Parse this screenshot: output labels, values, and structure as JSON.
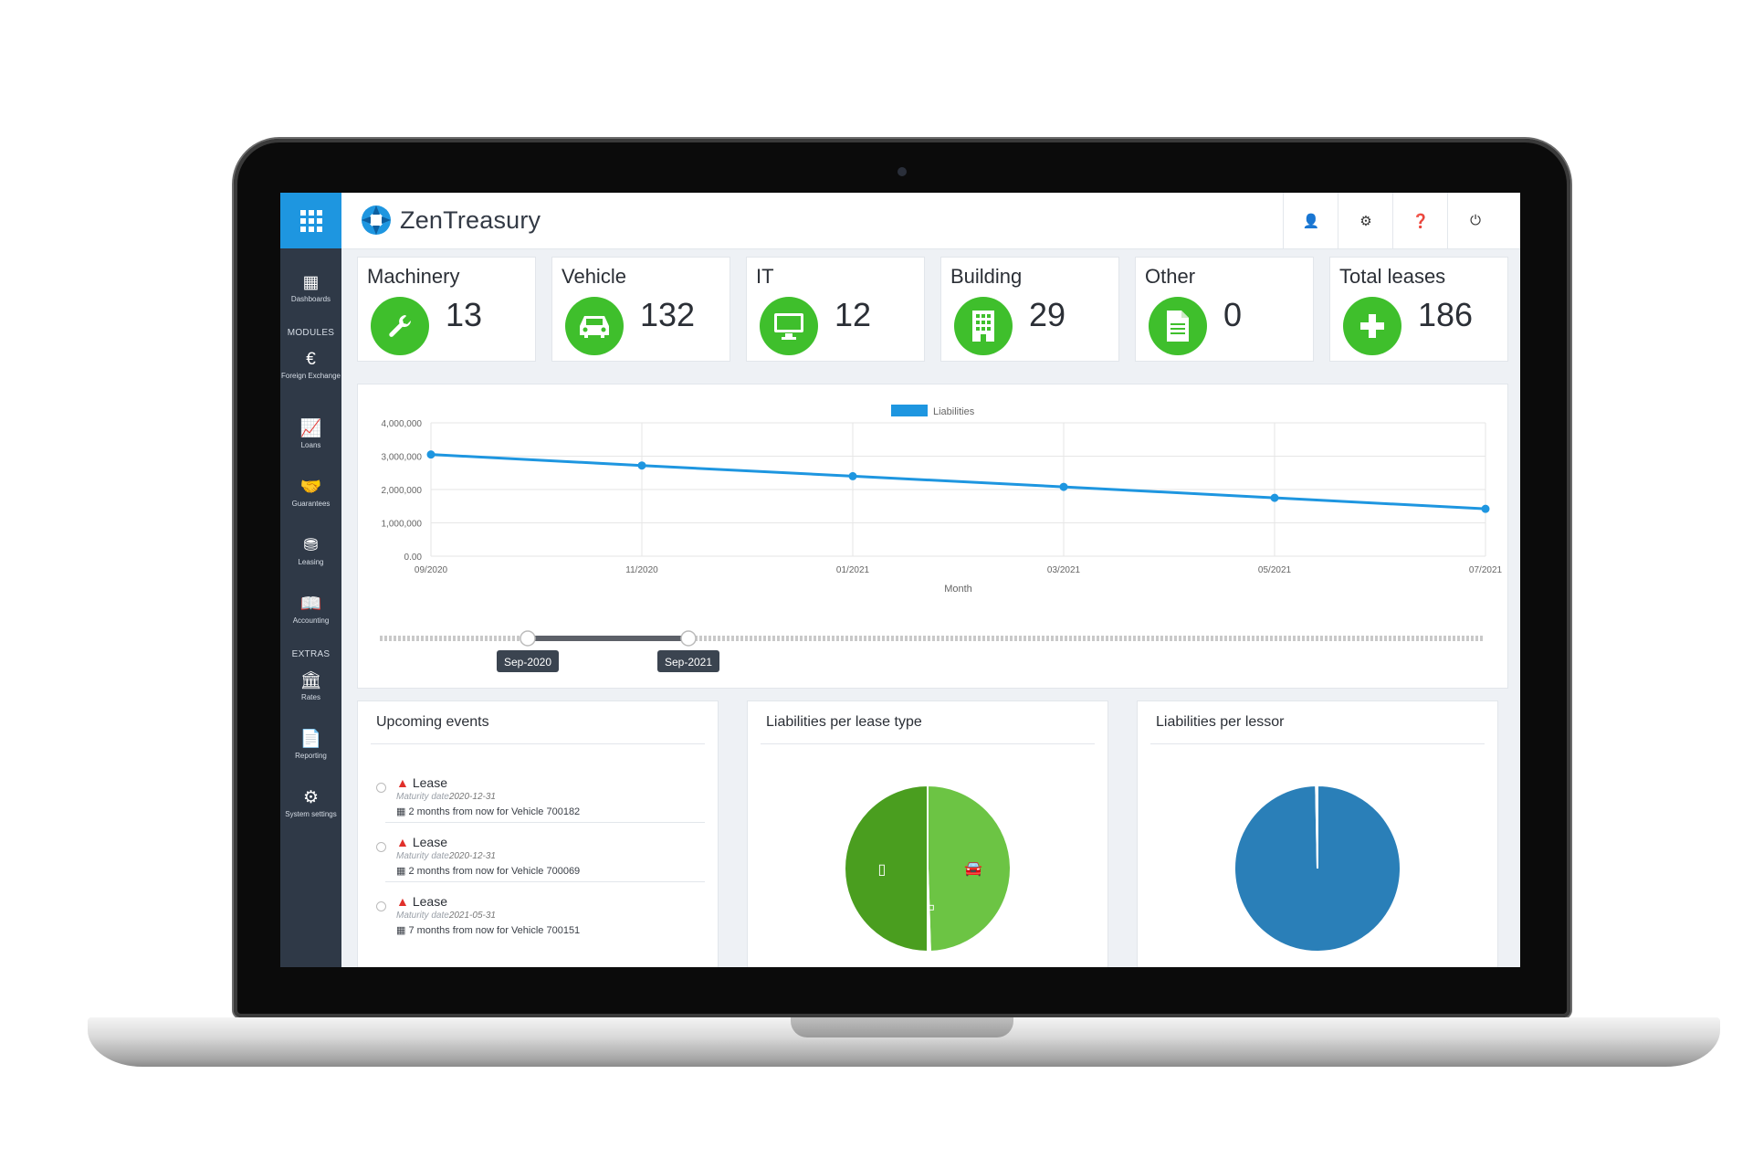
{
  "app": {
    "name": "ZenTreasury"
  },
  "sidebar": {
    "items": [
      {
        "label": "Dashboards",
        "icon": "dashboard-icon"
      },
      {
        "label": "Foreign Exchange",
        "icon": "currency-exchange-icon"
      },
      {
        "label": "Loans",
        "icon": "loans-chart-icon"
      },
      {
        "label": "Guarantees",
        "icon": "handshake-icon"
      },
      {
        "label": "Leasing",
        "icon": "leasing-icon"
      },
      {
        "label": "Accounting",
        "icon": "accounting-book-icon"
      },
      {
        "label": "Rates",
        "icon": "bank-icon"
      },
      {
        "label": "Reporting",
        "icon": "report-icon"
      },
      {
        "label": "System settings",
        "icon": "gears-icon"
      }
    ],
    "section_modules": "MODULES",
    "section_extras": "EXTRAS"
  },
  "header_icons": [
    "user-icon",
    "gear-icon",
    "help-icon",
    "power-icon"
  ],
  "stats": [
    {
      "label": "Machinery",
      "value": "13",
      "icon": "wrench-icon"
    },
    {
      "label": "Vehicle",
      "value": "132",
      "icon": "car-icon"
    },
    {
      "label": "IT",
      "value": "12",
      "icon": "monitor-icon"
    },
    {
      "label": "Building",
      "value": "29",
      "icon": "building-icon"
    },
    {
      "label": "Other",
      "value": "0",
      "icon": "document-icon"
    },
    {
      "label": "Total leases",
      "value": "186",
      "icon": "plus-icon"
    }
  ],
  "colors": {
    "accent": "#1e96e0",
    "stat_green": "#3fbf2c",
    "sidebar": "#2f3947",
    "line": "#1e96e0",
    "pie_dark_green": "#4a9e1f",
    "pie_light_green": "#6cc444",
    "pie_blue": "#2a7fb8"
  },
  "chart_data": [
    {
      "type": "line",
      "title": "",
      "legend": "top-center",
      "series": [
        {
          "name": "Liabilities",
          "x": [
            "09/2020",
            "11/2020",
            "01/2021",
            "03/2021",
            "05/2021",
            "07/2021"
          ],
          "values": [
            3050000,
            2720000,
            2400000,
            2080000,
            1750000,
            1420000
          ]
        }
      ],
      "xlabel": "Month",
      "ylabel": "",
      "ylim": [
        0,
        4000000
      ],
      "yticks": [
        "4,000,000",
        "3,000,000",
        "2,000,000",
        "1,000,000",
        "0.00"
      ],
      "xticks": [
        "09/2020",
        "11/2020",
        "01/2021",
        "03/2021",
        "05/2021",
        "07/2021"
      ],
      "grid": true,
      "range_slider": {
        "start_label": "Sep-2020",
        "end_label": "Sep-2021"
      }
    },
    {
      "type": "pie",
      "title": "Liabilities per lease type",
      "slices": [
        {
          "label": "Building",
          "icon": "building-icon",
          "value": 0.5
        },
        {
          "label": "Vehicle",
          "icon": "car-icon",
          "value": 0.495
        },
        {
          "label": "IT",
          "icon": "monitor-icon",
          "value": 0.005
        }
      ]
    },
    {
      "type": "pie",
      "title": "Liabilities per lessor",
      "slices": [
        {
          "label": "",
          "value": 0.997
        },
        {
          "label": "",
          "value": 0.003
        }
      ]
    }
  ],
  "events": {
    "title": "Upcoming events",
    "items": [
      {
        "title": "Lease",
        "maturity_label": "Maturity date",
        "maturity_date": "2020-12-31",
        "detail": "2 months from now for Vehicle 700182"
      },
      {
        "title": "Lease",
        "maturity_label": "Maturity date",
        "maturity_date": "2020-12-31",
        "detail": "2 months from now for Vehicle 700069"
      },
      {
        "title": "Lease",
        "maturity_label": "Maturity date",
        "maturity_date": "2021-05-31",
        "detail": "7 months from now for Vehicle 700151"
      }
    ]
  }
}
